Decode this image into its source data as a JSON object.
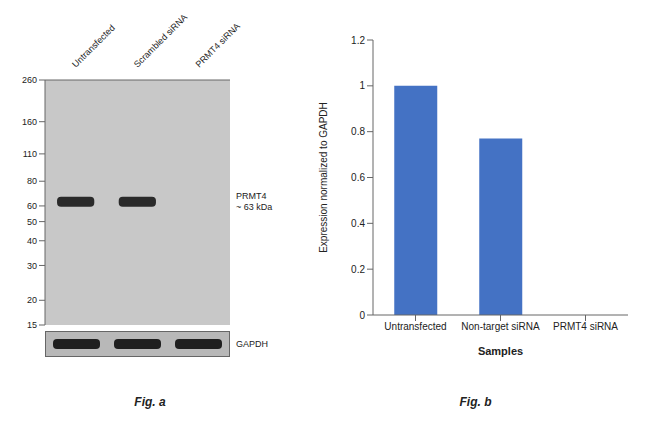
{
  "chart_data": [
    {
      "type": "blot",
      "title": "Fig. a",
      "categories": [
        "Untransfected",
        "Scrambled siRNA",
        "PRMT4 siRNA"
      ],
      "log": "y",
      "ylim": [
        15,
        260
      ],
      "yticks": [
        260,
        160,
        110,
        80,
        60,
        50,
        40,
        30,
        20,
        15
      ],
      "series": [
        {
          "name": "PRMT4\n~ 63 kDa",
          "values": [
            63,
            63,
            null
          ]
        }
      ],
      "annotations": [
        "GAPDH"
      ]
    },
    {
      "type": "bar",
      "title": "Fig. b",
      "categories": [
        "Untransfected",
        "Non-target siRNA",
        "PRMT4 siRNA"
      ],
      "values": [
        1.0,
        0.77,
        0.0
      ],
      "color": "#4472c4",
      "xlabel": "Samples",
      "ylabel": "Expression normalized to GAPDH",
      "ylim": [
        0,
        1.2
      ],
      "yticks": [
        0,
        0.2,
        0.4,
        0.6,
        0.8,
        1.0,
        1.2
      ]
    }
  ]
}
